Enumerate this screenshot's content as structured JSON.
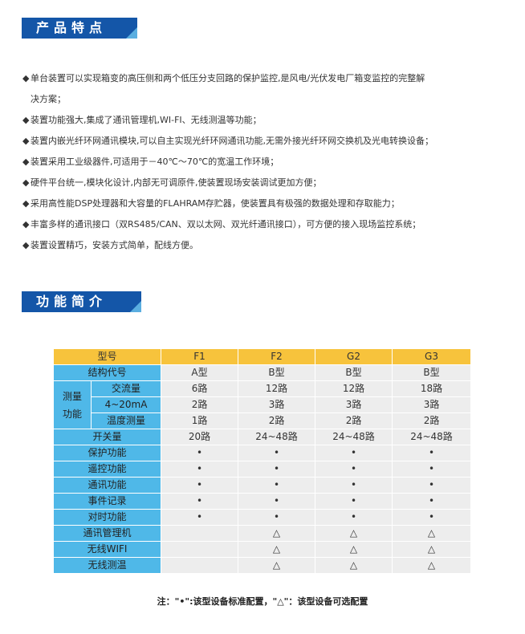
{
  "section1": {
    "title": "产品特点"
  },
  "features": [
    "单台装置可以实现箱变的高压侧和两个低压分支回路的保护监控,是风电/光伏发电厂箱变监控的完整解",
    "决方案；",
    "装置功能强大,集成了通讯管理机,WI-FI、无线测温等功能；",
    "装置内嵌光纤环网通讯模块,可以自主实现光纤环网通讯功能,无需外接光纤环网交换机及光电转换设备；",
    "装置采用工业级器件,可适用于－40℃～70℃的宽温工作环境；",
    "硬件平台统一,模块化设计,内部无可调原件,使装置现场安装调试更加方便；",
    "采用高性能DSP处理器和大容量的FLAHRAM存贮器，使装置具有极强的数据处理和存取能力；",
    "丰富多样的通讯接口（双RS485/CAN、双以太网、双光纤通讯接口），可方便的接入现场监控系统；",
    "装置设置精巧，安装方式简单，配线方便。"
  ],
  "bullet_symbol": "◆",
  "section2": {
    "title": "功能简介"
  },
  "table": {
    "header": [
      "型号",
      "F1",
      "F2",
      "G2",
      "G3"
    ],
    "group_label": "测量\n功能",
    "rows": [
      {
        "label": "结构代号",
        "values": [
          "A型",
          "B型",
          "B型",
          "B型"
        ]
      },
      {
        "label": "交流量",
        "values": [
          "6路",
          "12路",
          "12路",
          "18路"
        ]
      },
      {
        "label": "4~20mA",
        "values": [
          "2路",
          "3路",
          "3路",
          "3路"
        ]
      },
      {
        "label": "温度测量",
        "values": [
          "1路",
          "2路",
          "2路",
          "2路"
        ]
      },
      {
        "label": "开关量",
        "values": [
          "20路",
          "24~48路",
          "24~48路",
          "24~48路"
        ]
      },
      {
        "label": "保护功能",
        "values": [
          "•",
          "•",
          "•",
          "•"
        ]
      },
      {
        "label": "遥控功能",
        "values": [
          "•",
          "•",
          "•",
          "•"
        ]
      },
      {
        "label": "通讯功能",
        "values": [
          "•",
          "•",
          "•",
          "•"
        ]
      },
      {
        "label": "事件记录",
        "values": [
          "•",
          "•",
          "•",
          "•"
        ]
      },
      {
        "label": "对时功能",
        "values": [
          "•",
          "•",
          "•",
          "•"
        ]
      },
      {
        "label": "通讯管理机",
        "values": [
          "",
          "△",
          "△",
          "△"
        ]
      },
      {
        "label": "无线WIFI",
        "values": [
          "",
          "△",
          "△",
          "△"
        ]
      },
      {
        "label": "无线测温",
        "values": [
          "",
          "△",
          "△",
          "△"
        ]
      }
    ]
  },
  "note": "注：\"•\":该型设备标准配置，\"△\"：该型设备可选配置",
  "colors": {
    "badge": "#1456a8",
    "header": "#f7c33c",
    "label_cell": "#4fb8e8",
    "data_cell": "#ededed"
  }
}
